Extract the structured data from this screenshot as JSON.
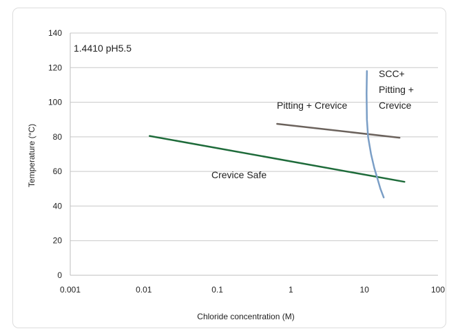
{
  "chart_data": {
    "type": "line",
    "title": "1.4410 pH5.5",
    "xlabel": "Chloride concentration (M)",
    "ylabel": "Temperature (°C)",
    "x_scale": "log",
    "xlim": [
      0.001,
      100
    ],
    "ylim": [
      0,
      140
    ],
    "x_ticks": [
      "0.001",
      "0.01",
      "0.1",
      "1",
      "10",
      "100"
    ],
    "y_ticks": [
      "0",
      "20",
      "40",
      "60",
      "80",
      "100",
      "120",
      "140"
    ],
    "grid": "horizontal",
    "annotations": {
      "crevice_safe": "Crevice Safe",
      "pitting_crevice": "Pitting + Crevice",
      "scc_line1": "SCC+",
      "scc_line2": "Pitting +",
      "scc_line3": "Crevice"
    },
    "series": [
      {
        "color": "#1e6b3a",
        "x": [
          0.012,
          35
        ],
        "y": [
          80.5,
          54
        ]
      },
      {
        "color": "#6b625c",
        "x": [
          0.65,
          30
        ],
        "y": [
          87.5,
          79.5
        ]
      },
      {
        "color": "#7a9ec6",
        "x": [
          10.8,
          10.7,
          10.8,
          11.2,
          12.3,
          13.6,
          15.0,
          16.5,
          18.3
        ],
        "y": [
          118,
          105,
          90,
          80,
          70,
          62,
          56,
          50,
          45
        ]
      }
    ]
  }
}
